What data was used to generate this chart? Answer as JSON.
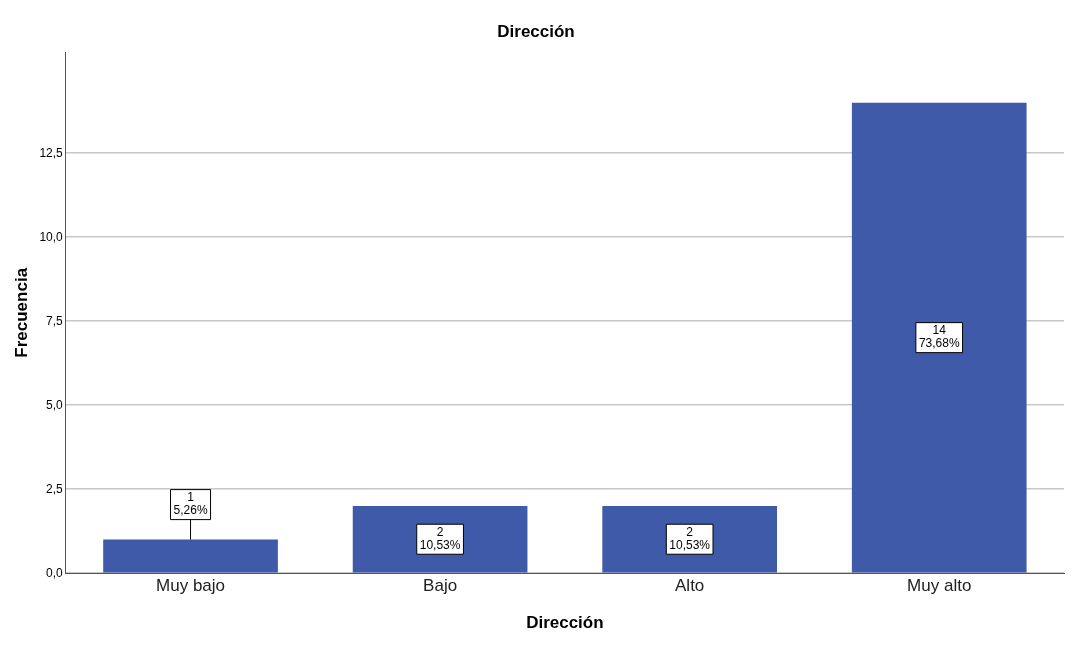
{
  "chart_data": {
    "type": "bar",
    "title": "Dirección",
    "xlabel": "Dirección",
    "ylabel": "Frecuencia",
    "categories": [
      "Muy bajo",
      "Bajo",
      "Alto",
      "Muy alto"
    ],
    "values": [
      1,
      2,
      2,
      14
    ],
    "value_labels": [
      "1\n5,26%",
      "2\n10,53%",
      "2\n10,53%",
      "14\n73,68%"
    ],
    "color": "#3e5aa8",
    "ylim": [
      0,
      15.5
    ],
    "yticks": [
      {
        "value": 0,
        "label": "0,0"
      },
      {
        "value": 2.5,
        "label": "2,5"
      },
      {
        "value": 5,
        "label": "5,0"
      },
      {
        "value": 7.5,
        "label": "7,5"
      },
      {
        "value": 10,
        "label": "10,0"
      },
      {
        "value": 12.5,
        "label": "12,5"
      }
    ],
    "grid": "y",
    "legend": false
  }
}
